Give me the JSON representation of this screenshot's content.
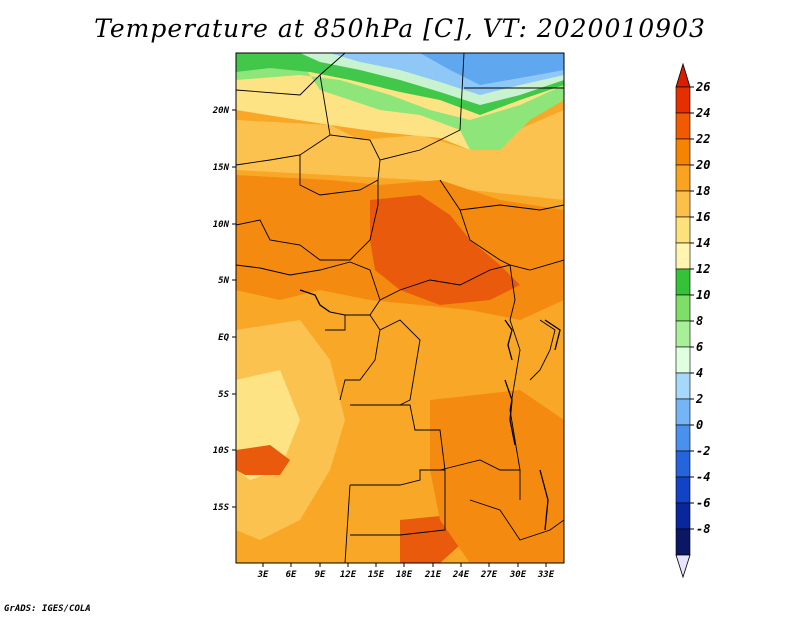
{
  "title": "Temperature at 850hPa [C], VT: 2020010903",
  "credit": "GrADS: IGES/COLA",
  "map": {
    "lon_labels": [
      "3E",
      "6E",
      "9E",
      "12E",
      "15E",
      "18E",
      "21E",
      "24E",
      "27E",
      "30E",
      "33E"
    ],
    "lat_labels": [
      "20N",
      "15N",
      "10N",
      "5N",
      "EQ",
      "5S",
      "10S",
      "15S"
    ]
  },
  "colorbar": {
    "levels": [
      "26",
      "24",
      "22",
      "20",
      "18",
      "16",
      "14",
      "12",
      "10",
      "8",
      "6",
      "4",
      "2",
      "0",
      "-2",
      "-4",
      "-6",
      "-8"
    ],
    "colors": [
      "#e62f00",
      "#f25a00",
      "#f58400",
      "#f9a321",
      "#fcc04a",
      "#fde27c",
      "#fef6b0",
      "#36c236",
      "#7ede68",
      "#a8f098",
      "#e0ffe0",
      "#a6d8fb",
      "#75b4f5",
      "#4a91ee",
      "#2464dc",
      "#1143c4",
      "#0a269c",
      "#0b1764"
    ],
    "over_color": "#d81e00",
    "under_color": "#e6e4ff"
  },
  "colors": {
    "deep_orange": "#e95a0c",
    "orange": "#f48a0f",
    "light_orange": "#f9a726",
    "pale_orange": "#fcc24f",
    "pale_yellow": "#fde384",
    "green": "#41c84a",
    "light_green": "#8ee57a",
    "blue": "#8fc8f7"
  }
}
